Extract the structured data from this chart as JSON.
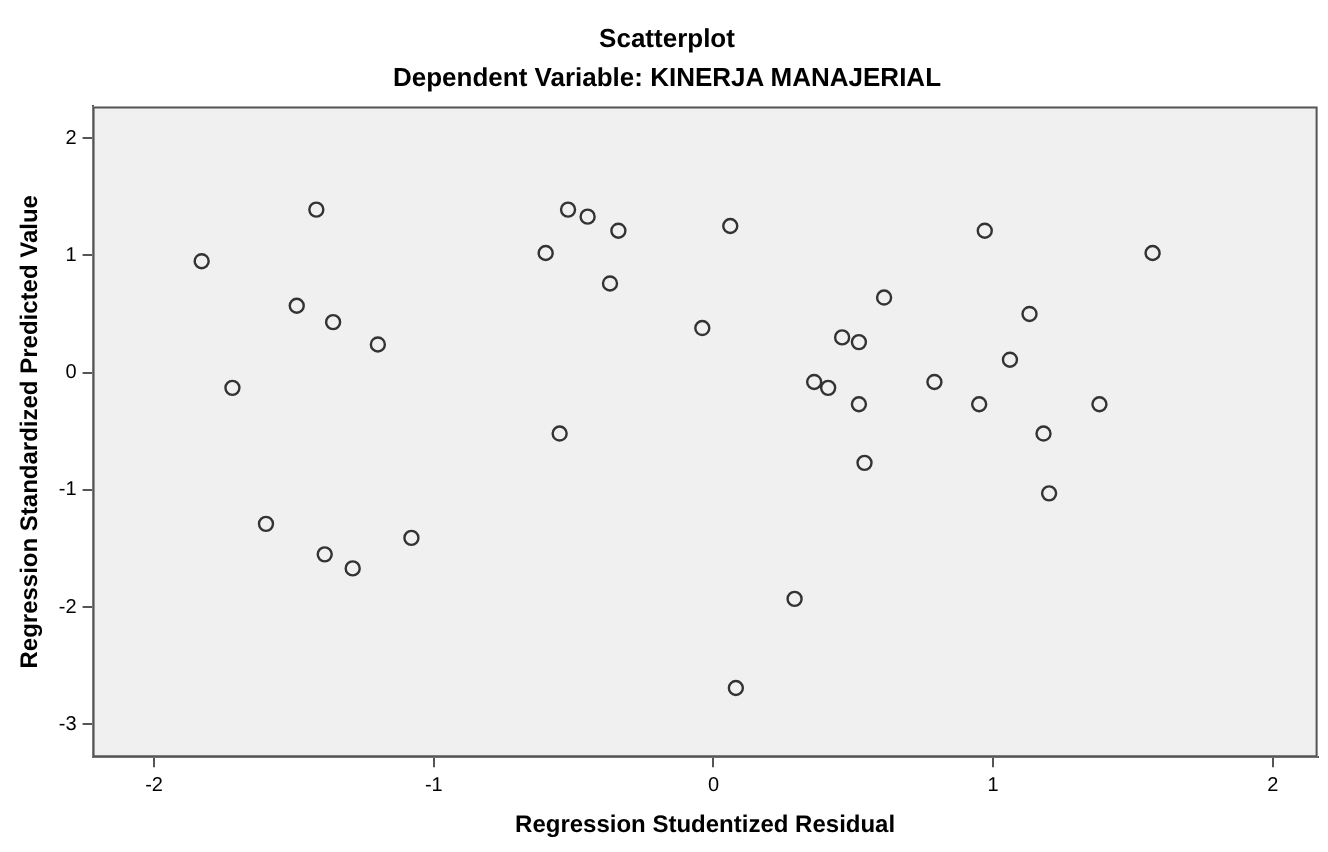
{
  "chart_data": {
    "type": "scatter",
    "title": "Scatterplot",
    "subtitle": "Dependent Variable: KINERJA MANAJERIAL",
    "xlabel": "Regression Studentized Residual",
    "ylabel": "Regression Standardized Predicted Value",
    "x": [
      -1.83,
      -1.42,
      -1.49,
      -1.36,
      -1.2,
      -1.72,
      -1.6,
      -1.39,
      -1.29,
      -1.08,
      -0.6,
      -0.52,
      -0.45,
      -0.34,
      -0.37,
      -0.55,
      -0.04,
      0.06,
      0.97,
      1.57,
      0.61,
      1.13,
      0.46,
      0.52,
      1.06,
      0.36,
      0.41,
      0.79,
      0.52,
      0.95,
      1.38,
      1.18,
      0.54,
      1.2,
      0.29,
      0.08
    ],
    "values": [
      0.95,
      1.39,
      0.57,
      0.43,
      0.24,
      -0.13,
      -1.29,
      -1.55,
      -1.67,
      -1.41,
      1.02,
      1.39,
      1.33,
      1.21,
      0.76,
      -0.52,
      0.38,
      1.25,
      1.21,
      1.02,
      0.64,
      0.5,
      0.3,
      0.26,
      0.11,
      -0.08,
      -0.13,
      -0.08,
      -0.27,
      -0.27,
      -0.27,
      -0.52,
      -0.77,
      -1.03,
      -1.93,
      -2.69
    ],
    "color": "#333333",
    "marker": "circle",
    "grid": false,
    "legend": false,
    "xlim": [
      -2.22,
      2.16
    ],
    "ylim": [
      -3.28,
      2.27
    ],
    "xticks": [
      -2,
      -1,
      0,
      1,
      2
    ],
    "yticks": [
      -3,
      -2,
      -1,
      0,
      1,
      2
    ]
  }
}
